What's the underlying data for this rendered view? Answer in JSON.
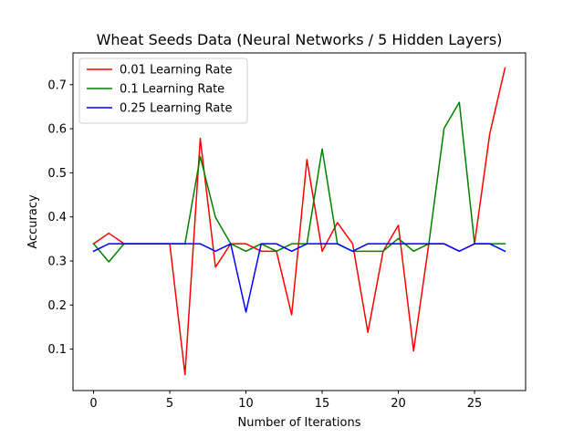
{
  "chart_data": {
    "type": "line",
    "title": "Wheat Seeds Data (Neural Networks / 5 Hidden Layers)",
    "xlabel": "Number of Iterations",
    "ylabel": "Accuracy",
    "xlim": [
      -1.35,
      28.35
    ],
    "ylim": [
      0.006,
      0.772
    ],
    "xticks": [
      0,
      5,
      10,
      15,
      20,
      25
    ],
    "yticks": [
      0.1,
      0.2,
      0.3,
      0.4,
      0.5,
      0.6,
      0.7
    ],
    "grid": false,
    "legend_position": "upper-left",
    "x": [
      0,
      1,
      2,
      3,
      4,
      5,
      6,
      7,
      8,
      9,
      10,
      11,
      12,
      13,
      14,
      15,
      16,
      17,
      18,
      19,
      20,
      21,
      22,
      23,
      24,
      25,
      26,
      27
    ],
    "series": [
      {
        "name": "0.01 Learning Rate",
        "color": "#ff0000",
        "values": [
          0.339,
          0.363,
          0.339,
          0.339,
          0.339,
          0.339,
          0.042,
          0.578,
          0.286,
          0.339,
          0.339,
          0.322,
          0.322,
          0.178,
          0.53,
          0.322,
          0.387,
          0.339,
          0.138,
          0.322,
          0.381,
          0.096,
          0.339,
          0.339,
          0.322,
          0.339,
          0.589,
          0.738
        ]
      },
      {
        "name": "0.1 Learning Rate",
        "color": "#008000",
        "values": [
          0.339,
          0.298,
          0.339,
          0.339,
          0.339,
          0.339,
          0.339,
          0.537,
          0.399,
          0.339,
          0.322,
          0.339,
          0.322,
          0.339,
          0.339,
          0.554,
          0.339,
          0.322,
          0.322,
          0.322,
          0.351,
          0.322,
          0.339,
          0.601,
          0.66,
          0.339,
          0.339,
          0.339
        ]
      },
      {
        "name": "0.25 Learning Rate",
        "color": "#0000ff",
        "values": [
          0.322,
          0.339,
          0.339,
          0.339,
          0.339,
          0.339,
          0.339,
          0.339,
          0.322,
          0.339,
          0.184,
          0.339,
          0.339,
          0.322,
          0.339,
          0.339,
          0.339,
          0.322,
          0.339,
          0.339,
          0.339,
          0.339,
          0.339,
          0.339,
          0.322,
          0.339,
          0.339,
          0.322
        ]
      }
    ]
  }
}
